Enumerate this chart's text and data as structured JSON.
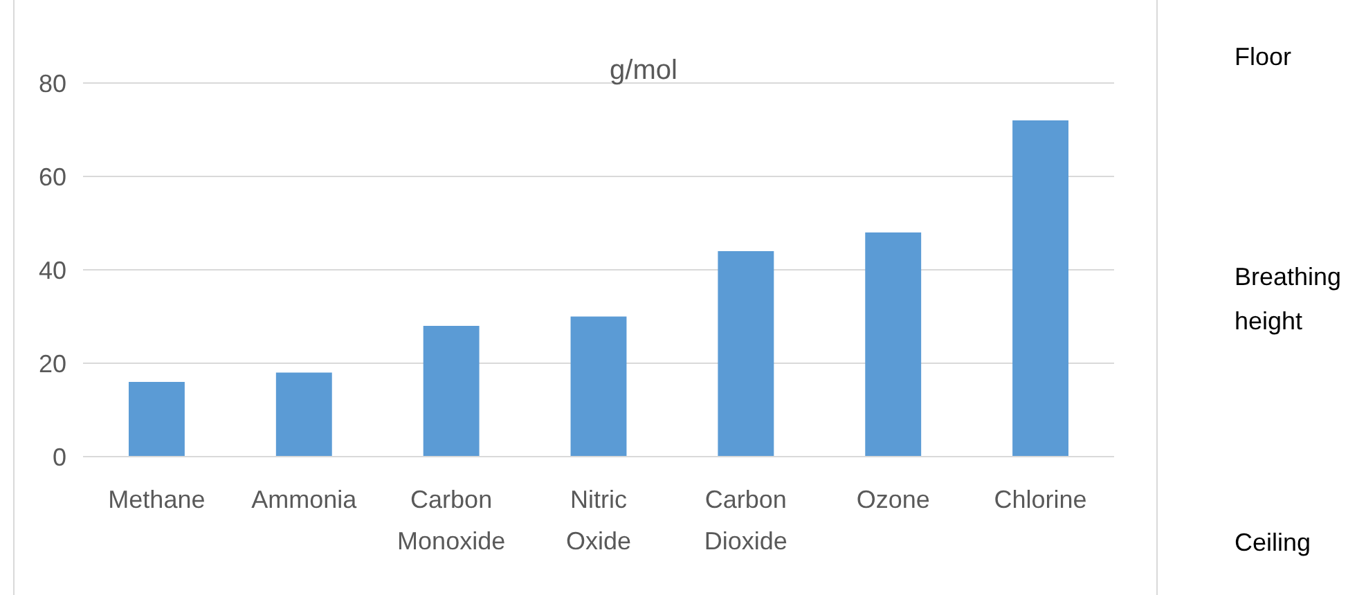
{
  "chart_data": {
    "type": "bar",
    "title": "g/mol",
    "categories": [
      "Methane",
      "Ammonia",
      "Carbon Monoxide",
      "Nitric Oxide",
      "Carbon Dioxide",
      "Ozone",
      "Chlorine"
    ],
    "values": [
      16,
      18,
      28,
      30,
      44,
      48,
      72
    ],
    "color": "#5b9bd5",
    "ylim": [
      0,
      80
    ],
    "yticks": [
      0,
      20,
      40,
      60,
      80
    ],
    "grid": "y",
    "annotations": [
      "Floor",
      "Breathing height",
      "Ceiling"
    ]
  }
}
